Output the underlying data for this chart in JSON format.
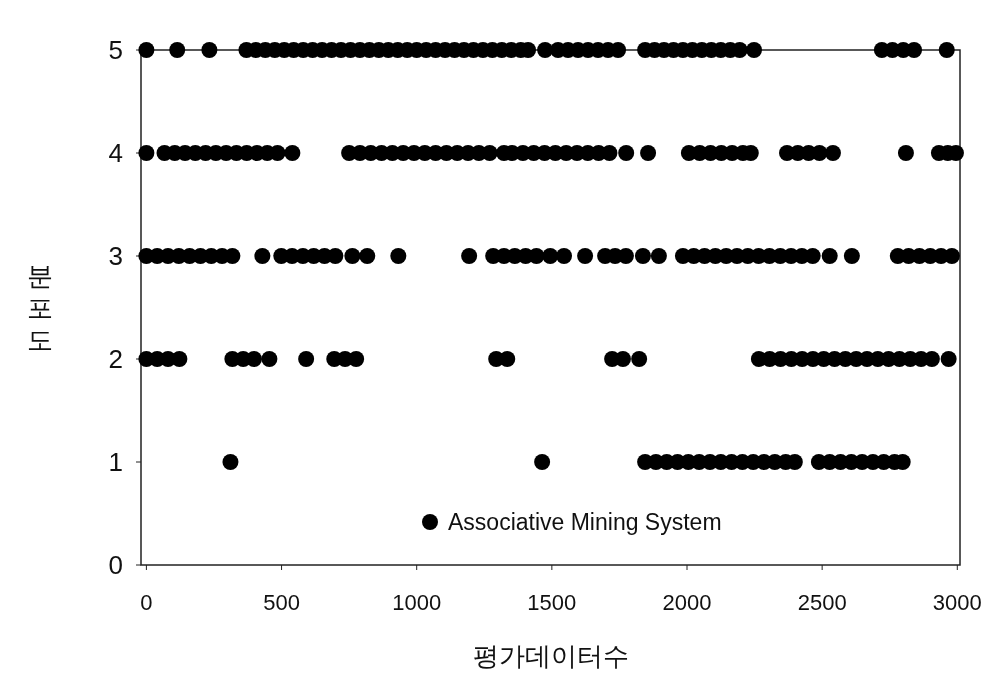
{
  "chart_data": {
    "type": "scatter",
    "xlabel": "평가데이터수",
    "ylabel": "분포도",
    "xlim": [
      -20,
      3010
    ],
    "xticks": [
      0,
      500,
      1000,
      1500,
      2000,
      2500,
      3000
    ],
    "ylim": [
      0,
      5
    ],
    "yticks": [
      0,
      1,
      2,
      3,
      4,
      5
    ],
    "grid": false,
    "legend": "bottom right",
    "marker": "circle",
    "series": [
      {
        "name": "Associative Mining System",
        "color": "#000000",
        "x": [
          0,
          114,
          233,
          370,
          405,
          440,
          475,
          510,
          545,
          580,
          615,
          650,
          685,
          720,
          755,
          790,
          825,
          860,
          895,
          930,
          965,
          1000,
          1035,
          1070,
          1105,
          1140,
          1175,
          1210,
          1245,
          1280,
          1315,
          1350,
          1385,
          1412,
          1475,
          1523,
          1560,
          1597,
          1634,
          1671,
          1708,
          1745,
          1845,
          1880,
          1915,
          1950,
          1985,
          2020,
          2055,
          2090,
          2125,
          2160,
          2195,
          2248,
          2721,
          2760,
          2800,
          2840,
          2961
        ],
        "values": [
          5,
          5,
          5,
          5,
          5,
          5,
          5,
          5,
          5,
          5,
          5,
          5,
          5,
          5,
          5,
          5,
          5,
          5,
          5,
          5,
          5,
          5,
          5,
          5,
          5,
          5,
          5,
          5,
          5,
          5,
          5,
          5,
          5,
          5,
          5,
          5,
          5,
          5,
          5,
          5,
          5,
          5,
          5,
          5,
          5,
          5,
          5,
          5,
          5,
          5,
          5,
          5,
          5,
          5,
          5,
          5,
          5,
          5,
          5
        ]
      },
      {
        "color": "#000000",
        "x": [
          0,
          67,
          105,
          143,
          181,
          219,
          257,
          295,
          333,
          371,
          409,
          447,
          485,
          540,
          750,
          790,
          830,
          870,
          910,
          950,
          990,
          1030,
          1070,
          1110,
          1150,
          1190,
          1230,
          1270,
          1323,
          1353,
          1393,
          1433,
          1473,
          1513,
          1553,
          1593,
          1633,
          1673,
          1713,
          1775,
          1856,
          2007,
          2047,
          2087,
          2127,
          2167,
          2207,
          2236,
          2370,
          2410,
          2450,
          2490,
          2540,
          2810,
          2932,
          2965,
          2995
        ],
        "values": [
          4,
          4,
          4,
          4,
          4,
          4,
          4,
          4,
          4,
          4,
          4,
          4,
          4,
          4,
          4,
          4,
          4,
          4,
          4,
          4,
          4,
          4,
          4,
          4,
          4,
          4,
          4,
          4,
          4,
          4,
          4,
          4,
          4,
          4,
          4,
          4,
          4,
          4,
          4,
          4,
          4,
          4,
          4,
          4,
          4,
          4,
          4,
          4,
          4,
          4,
          4,
          4,
          4,
          4,
          4,
          4,
          4
        ]
      },
      {
        "color": "#000000",
        "x": [
          0,
          40,
          80,
          120,
          160,
          200,
          240,
          280,
          318,
          429,
          499,
          539,
          579,
          619,
          659,
          699,
          762,
          817,
          932,
          1194,
          1283,
          1323,
          1363,
          1403,
          1443,
          1494,
          1545,
          1623,
          1697,
          1734,
          1774,
          1837,
          1896,
          1985,
          2025,
          2065,
          2105,
          2145,
          2185,
          2225,
          2265,
          2305,
          2345,
          2385,
          2425,
          2465,
          2528,
          2610,
          2780,
          2820,
          2860,
          2900,
          2940,
          2980
        ],
        "values": [
          3,
          3,
          3,
          3,
          3,
          3,
          3,
          3,
          3,
          3,
          3,
          3,
          3,
          3,
          3,
          3,
          3,
          3,
          3,
          3,
          3,
          3,
          3,
          3,
          3,
          3,
          3,
          3,
          3,
          3,
          3,
          3,
          3,
          3,
          3,
          3,
          3,
          3,
          3,
          3,
          3,
          3,
          3,
          3,
          3,
          3,
          3,
          3,
          3,
          3,
          3,
          3,
          3,
          3
        ]
      },
      {
        "color": "#000000",
        "x": [
          0,
          40,
          80,
          122,
          318,
          358,
          398,
          455,
          591,
          695,
          735,
          776,
          1294,
          1335,
          1723,
          1763,
          1823,
          2266,
          2306,
          2346,
          2386,
          2426,
          2466,
          2506,
          2546,
          2586,
          2626,
          2666,
          2706,
          2746,
          2786,
          2826,
          2866,
          2906,
          2968
        ],
        "values": [
          2,
          2,
          2,
          2,
          2,
          2,
          2,
          2,
          2,
          2,
          2,
          2,
          2,
          2,
          2,
          2,
          2,
          2,
          2,
          2,
          2,
          2,
          2,
          2,
          2,
          2,
          2,
          2,
          2,
          2,
          2,
          2,
          2,
          2,
          2
        ]
      },
      {
        "color": "#000000",
        "x": [
          311,
          1464,
          1845,
          1885,
          1925,
          1965,
          2005,
          2045,
          2085,
          2125,
          2165,
          2205,
          2245,
          2285,
          2325,
          2365,
          2399,
          2488,
          2528,
          2568,
          2608,
          2648,
          2688,
          2728,
          2768,
          2798
        ],
        "values": [
          1,
          1,
          1,
          1,
          1,
          1,
          1,
          1,
          1,
          1,
          1,
          1,
          1,
          1,
          1,
          1,
          1,
          1,
          1,
          1,
          1,
          1,
          1,
          1,
          1,
          1
        ]
      }
    ]
  }
}
